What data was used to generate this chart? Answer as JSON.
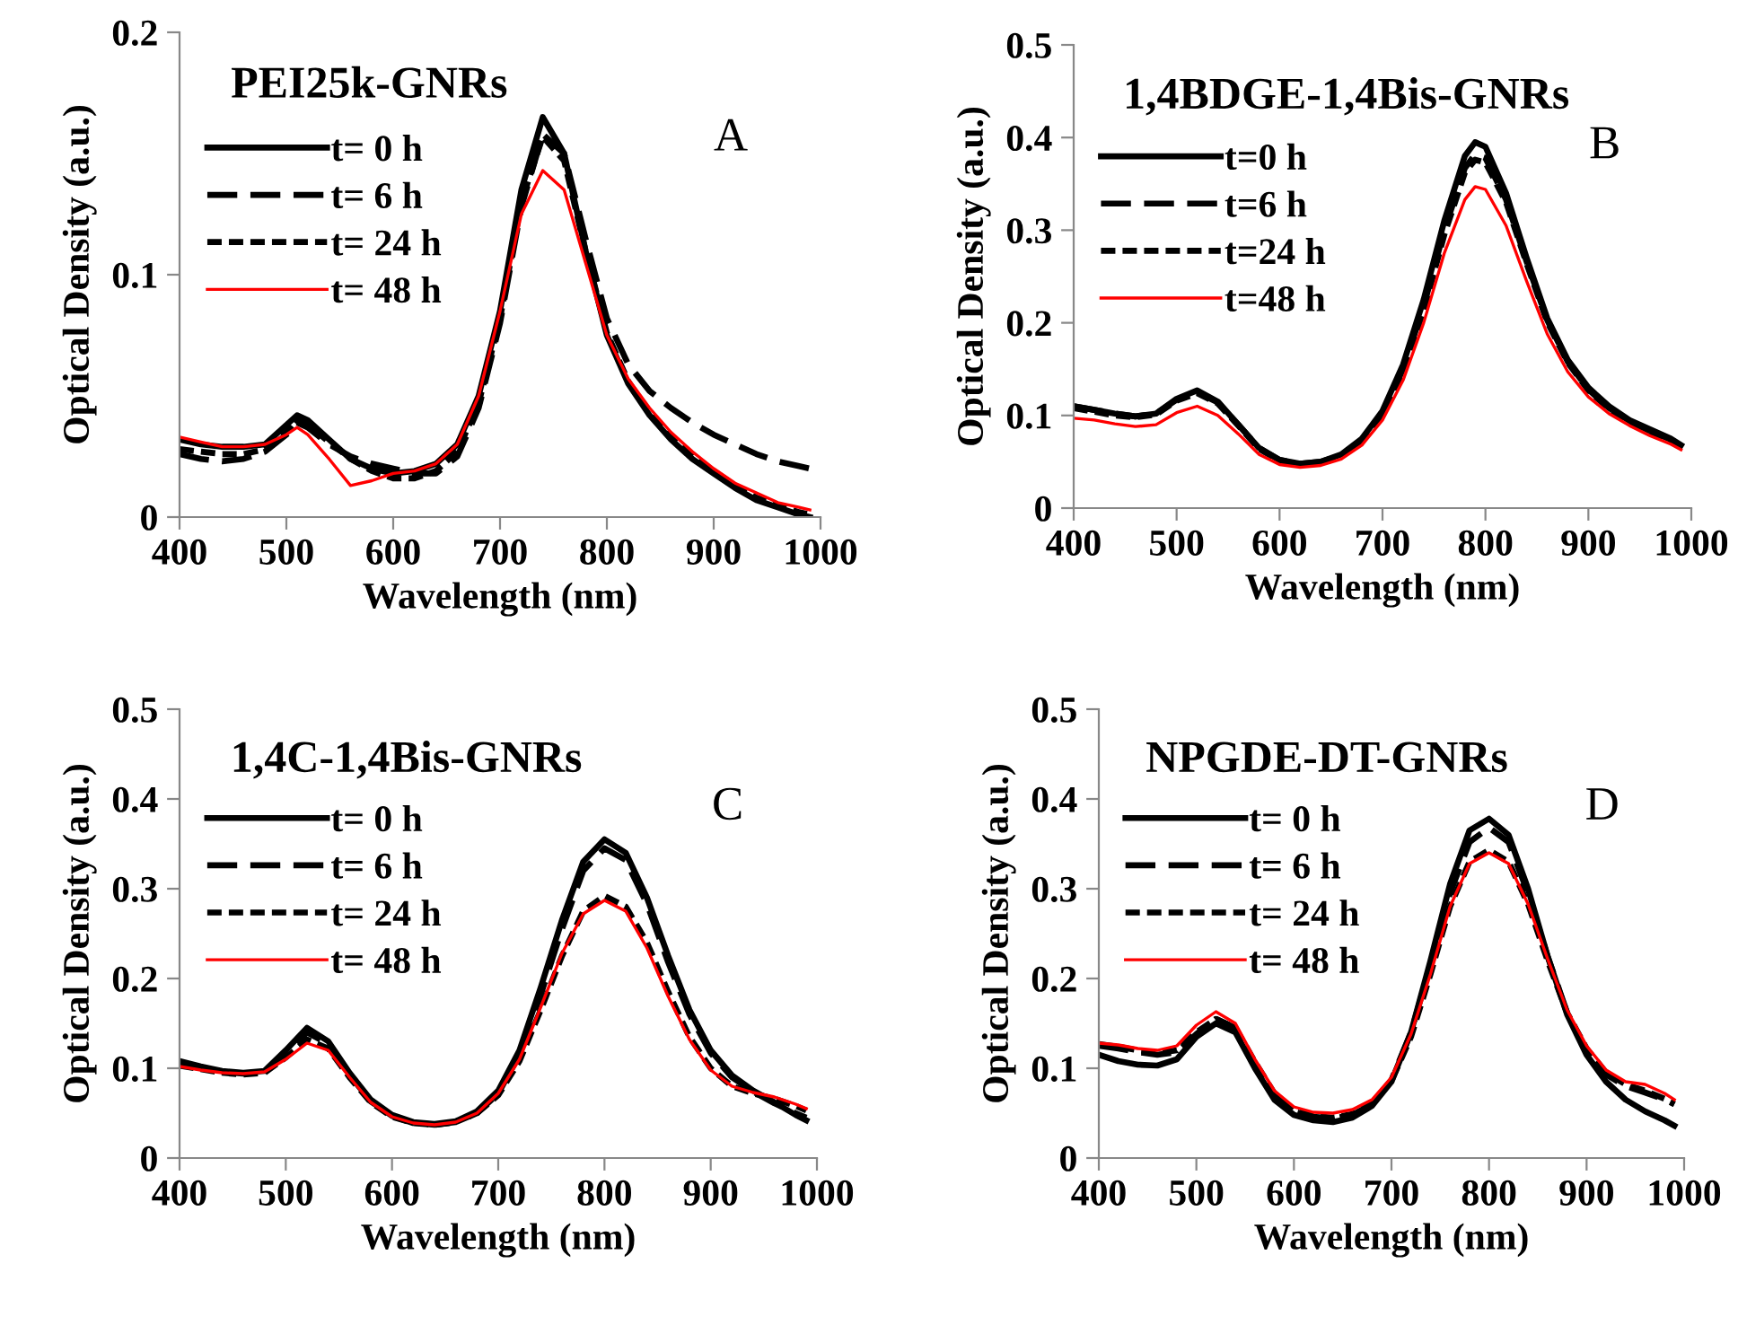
{
  "chart_data": [
    {
      "type": "line",
      "title": "PEI25k-GNRs",
      "xlabel": "Wavelength (nm)",
      "ylabel": "Optical Density (a.u.)",
      "annotations": [
        "A"
      ],
      "legend": "top left",
      "x": [
        400,
        420,
        440,
        460,
        480,
        500,
        510,
        520,
        540,
        560,
        580,
        600,
        620,
        640,
        660,
        680,
        700,
        720,
        740,
        760,
        780,
        800,
        820,
        840,
        860,
        880,
        900,
        920,
        940,
        960,
        980,
        990
      ],
      "xlim": [
        400,
        1000
      ],
      "xticks": [
        400,
        500,
        600,
        700,
        800,
        900,
        1000
      ],
      "ylim": [
        0,
        0.2
      ],
      "yticks": [
        0,
        0.1,
        0.2
      ],
      "series": [
        {
          "name": "t= 0 h",
          "color": "#000000",
          "line_style": "solid",
          "values": [
            0.032,
            0.03,
            0.029,
            0.029,
            0.03,
            0.038,
            0.042,
            0.04,
            0.032,
            0.024,
            0.02,
            0.018,
            0.019,
            0.022,
            0.03,
            0.05,
            0.085,
            0.135,
            0.165,
            0.15,
            0.11,
            0.075,
            0.055,
            0.042,
            0.032,
            0.024,
            0.018,
            0.012,
            0.007,
            0.004,
            0.001,
            0.0
          ]
        },
        {
          "name": "t= 6 h",
          "color": "#000000",
          "line_style": "dashed",
          "values": [
            0.026,
            0.024,
            0.023,
            0.024,
            0.027,
            0.034,
            0.039,
            0.037,
            0.03,
            0.025,
            0.022,
            0.02,
            0.018,
            0.018,
            0.025,
            0.045,
            0.08,
            0.128,
            0.158,
            0.15,
            0.115,
            0.082,
            0.063,
            0.052,
            0.045,
            0.039,
            0.034,
            0.03,
            0.026,
            0.023,
            0.021,
            0.02
          ]
        },
        {
          "name": "t= 24 h",
          "color": "#000000",
          "line_style": "dotted",
          "values": [
            0.028,
            0.027,
            0.026,
            0.026,
            0.028,
            0.035,
            0.04,
            0.038,
            0.031,
            0.024,
            0.019,
            0.016,
            0.016,
            0.019,
            0.027,
            0.047,
            0.082,
            0.13,
            0.157,
            0.147,
            0.11,
            0.076,
            0.056,
            0.043,
            0.033,
            0.025,
            0.019,
            0.013,
            0.008,
            0.005,
            0.002,
            0.001
          ]
        },
        {
          "name": "t= 48 h",
          "color": "#ff0000",
          "line_style": "solid",
          "values": [
            0.033,
            0.031,
            0.029,
            0.029,
            0.03,
            0.034,
            0.037,
            0.034,
            0.024,
            0.013,
            0.015,
            0.018,
            0.019,
            0.022,
            0.03,
            0.05,
            0.085,
            0.125,
            0.143,
            0.135,
            0.105,
            0.075,
            0.057,
            0.045,
            0.035,
            0.027,
            0.02,
            0.014,
            0.01,
            0.006,
            0.004,
            0.003
          ]
        }
      ]
    },
    {
      "type": "line",
      "title": "1,4BDGE-1,4Bis-GNRs",
      "xlabel": "Wavelength (nm)",
      "ylabel": "Optical Density (a.u.)",
      "annotations": [
        "B"
      ],
      "legend": "top left",
      "x": [
        400,
        420,
        440,
        460,
        480,
        500,
        520,
        540,
        560,
        580,
        600,
        620,
        640,
        660,
        680,
        700,
        720,
        740,
        760,
        780,
        790,
        800,
        820,
        840,
        860,
        880,
        900,
        920,
        940,
        960,
        980,
        990
      ],
      "xlim": [
        400,
        1000
      ],
      "xticks": [
        400,
        500,
        600,
        700,
        800,
        900,
        1000
      ],
      "ylim": [
        0,
        0.5
      ],
      "yticks": [
        0,
        0.1,
        0.2,
        0.3,
        0.4,
        0.5
      ],
      "series": [
        {
          "name": "t=0 h",
          "color": "#000000",
          "line_style": "solid",
          "values": [
            0.11,
            0.106,
            0.102,
            0.099,
            0.102,
            0.118,
            0.127,
            0.115,
            0.09,
            0.065,
            0.052,
            0.048,
            0.05,
            0.058,
            0.075,
            0.105,
            0.155,
            0.225,
            0.31,
            0.38,
            0.395,
            0.39,
            0.34,
            0.27,
            0.205,
            0.16,
            0.13,
            0.11,
            0.095,
            0.085,
            0.075,
            0.068
          ]
        },
        {
          "name": "t=6 h",
          "color": "#000000",
          "line_style": "dashed",
          "values": [
            0.11,
            0.106,
            0.102,
            0.099,
            0.102,
            0.117,
            0.125,
            0.114,
            0.09,
            0.065,
            0.052,
            0.048,
            0.05,
            0.057,
            0.073,
            0.102,
            0.15,
            0.218,
            0.3,
            0.367,
            0.382,
            0.378,
            0.333,
            0.266,
            0.203,
            0.158,
            0.128,
            0.108,
            0.094,
            0.083,
            0.074,
            0.067
          ]
        },
        {
          "name": "t=24 h",
          "color": "#000000",
          "line_style": "dotted",
          "values": [
            0.108,
            0.104,
            0.1,
            0.098,
            0.101,
            0.116,
            0.124,
            0.113,
            0.089,
            0.064,
            0.051,
            0.047,
            0.049,
            0.056,
            0.072,
            0.1,
            0.147,
            0.213,
            0.295,
            0.362,
            0.376,
            0.373,
            0.33,
            0.264,
            0.201,
            0.157,
            0.127,
            0.107,
            0.093,
            0.082,
            0.073,
            0.066
          ]
        },
        {
          "name": "t=48 h",
          "color": "#ff0000",
          "line_style": "solid",
          "values": [
            0.097,
            0.095,
            0.091,
            0.088,
            0.09,
            0.103,
            0.11,
            0.1,
            0.08,
            0.058,
            0.047,
            0.044,
            0.046,
            0.053,
            0.068,
            0.095,
            0.138,
            0.2,
            0.275,
            0.333,
            0.347,
            0.344,
            0.305,
            0.245,
            0.188,
            0.147,
            0.12,
            0.102,
            0.089,
            0.078,
            0.069,
            0.063
          ]
        }
      ]
    },
    {
      "type": "line",
      "title": "1,4C-1,4Bis-GNRs",
      "xlabel": "Wavelength (nm)",
      "ylabel": "Optical Density (a.u.)",
      "annotations": [
        "C"
      ],
      "legend": "top left",
      "x": [
        400,
        420,
        440,
        460,
        480,
        500,
        520,
        540,
        560,
        580,
        600,
        620,
        640,
        660,
        680,
        700,
        720,
        740,
        760,
        780,
        800,
        820,
        840,
        860,
        880,
        900,
        920,
        940,
        960,
        980,
        990
      ],
      "xlim": [
        400,
        1000
      ],
      "xticks": [
        400,
        500,
        600,
        700,
        800,
        900,
        1000
      ],
      "ylim": [
        0,
        0.5
      ],
      "yticks": [
        0,
        0.1,
        0.2,
        0.3,
        0.4,
        0.5
      ],
      "series": [
        {
          "name": "t= 0 h",
          "color": "#000000",
          "line_style": "solid",
          "values": [
            0.108,
            0.102,
            0.097,
            0.095,
            0.097,
            0.12,
            0.145,
            0.13,
            0.095,
            0.065,
            0.048,
            0.04,
            0.038,
            0.041,
            0.052,
            0.075,
            0.12,
            0.19,
            0.265,
            0.33,
            0.355,
            0.34,
            0.29,
            0.225,
            0.165,
            0.12,
            0.092,
            0.075,
            0.062,
            0.048,
            0.042
          ]
        },
        {
          "name": "t= 6 h",
          "color": "#000000",
          "line_style": "dashed",
          "values": [
            0.105,
            0.1,
            0.096,
            0.094,
            0.096,
            0.117,
            0.14,
            0.127,
            0.093,
            0.063,
            0.047,
            0.039,
            0.037,
            0.04,
            0.05,
            0.072,
            0.115,
            0.182,
            0.255,
            0.32,
            0.345,
            0.332,
            0.283,
            0.218,
            0.16,
            0.117,
            0.09,
            0.074,
            0.061,
            0.05,
            0.045
          ]
        },
        {
          "name": "t= 24 h",
          "color": "#000000",
          "line_style": "dotted",
          "values": [
            0.103,
            0.099,
            0.095,
            0.093,
            0.095,
            0.112,
            0.132,
            0.122,
            0.09,
            0.062,
            0.046,
            0.039,
            0.037,
            0.04,
            0.05,
            0.07,
            0.108,
            0.165,
            0.225,
            0.275,
            0.292,
            0.28,
            0.24,
            0.185,
            0.135,
            0.1,
            0.08,
            0.072,
            0.066,
            0.058,
            0.053
          ]
        },
        {
          "name": "t= 48 h",
          "color": "#ff0000",
          "line_style": "solid",
          "values": [
            0.102,
            0.098,
            0.095,
            0.094,
            0.096,
            0.11,
            0.128,
            0.12,
            0.09,
            0.062,
            0.046,
            0.039,
            0.037,
            0.04,
            0.05,
            0.072,
            0.11,
            0.168,
            0.228,
            0.272,
            0.287,
            0.275,
            0.234,
            0.18,
            0.132,
            0.098,
            0.08,
            0.073,
            0.068,
            0.06,
            0.055
          ]
        }
      ]
    },
    {
      "type": "line",
      "title": "NPGDE-DT-GNRs",
      "xlabel": "Wavelength (nm)",
      "ylabel": "Optical Density (a.u.)",
      "annotations": [
        "D"
      ],
      "legend": "top left",
      "x": [
        400,
        420,
        440,
        460,
        480,
        500,
        520,
        540,
        560,
        580,
        600,
        620,
        640,
        660,
        680,
        700,
        720,
        740,
        760,
        780,
        800,
        820,
        840,
        860,
        880,
        900,
        920,
        940,
        960,
        980,
        990
      ],
      "xlim": [
        400,
        1000
      ],
      "xticks": [
        400,
        500,
        600,
        700,
        800,
        900,
        1000
      ],
      "ylim": [
        0,
        0.5
      ],
      "yticks": [
        0,
        0.1,
        0.2,
        0.3,
        0.4,
        0.5
      ],
      "series": [
        {
          "name": "t= 0 h",
          "color": "#000000",
          "line_style": "solid",
          "values": [
            0.115,
            0.108,
            0.104,
            0.103,
            0.11,
            0.135,
            0.15,
            0.14,
            0.1,
            0.065,
            0.048,
            0.042,
            0.04,
            0.045,
            0.058,
            0.085,
            0.14,
            0.22,
            0.305,
            0.365,
            0.378,
            0.36,
            0.3,
            0.225,
            0.16,
            0.115,
            0.085,
            0.065,
            0.052,
            0.042,
            0.036
          ]
        },
        {
          "name": "t= 6 h",
          "color": "#000000",
          "line_style": "dashed",
          "values": [
            0.125,
            0.122,
            0.118,
            0.115,
            0.118,
            0.138,
            0.155,
            0.145,
            0.105,
            0.07,
            0.052,
            0.046,
            0.044,
            0.048,
            0.06,
            0.087,
            0.14,
            0.215,
            0.295,
            0.352,
            0.368,
            0.352,
            0.295,
            0.225,
            0.162,
            0.12,
            0.093,
            0.08,
            0.073,
            0.065,
            0.06
          ]
        },
        {
          "name": "t= 24 h",
          "color": "#000000",
          "line_style": "dotted",
          "values": [
            0.127,
            0.124,
            0.12,
            0.117,
            0.12,
            0.14,
            0.155,
            0.145,
            0.107,
            0.072,
            0.053,
            0.047,
            0.045,
            0.049,
            0.061,
            0.086,
            0.135,
            0.205,
            0.28,
            0.33,
            0.343,
            0.33,
            0.283,
            0.22,
            0.162,
            0.122,
            0.095,
            0.082,
            0.075,
            0.066,
            0.06
          ]
        },
        {
          "name": "t= 48 h",
          "color": "#ff0000",
          "line_style": "solid",
          "values": [
            0.128,
            0.126,
            0.122,
            0.12,
            0.125,
            0.148,
            0.163,
            0.15,
            0.11,
            0.075,
            0.057,
            0.051,
            0.05,
            0.054,
            0.065,
            0.09,
            0.138,
            0.205,
            0.28,
            0.328,
            0.34,
            0.328,
            0.283,
            0.222,
            0.165,
            0.125,
            0.098,
            0.085,
            0.082,
            0.072,
            0.065
          ]
        }
      ]
    }
  ]
}
